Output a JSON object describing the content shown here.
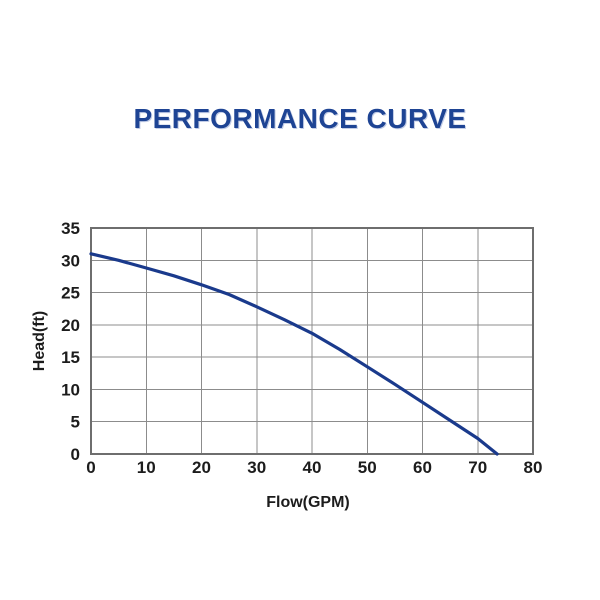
{
  "page": {
    "title": "PERFORMANCE CURVE"
  },
  "colors": {
    "background": "#ffffff",
    "title_text": "#1e4494",
    "curve": "#1a3a8c",
    "grid": "#8c8c8c",
    "border": "#6e6e6e",
    "tick_text": "#1c1c1c"
  },
  "chart_data": {
    "type": "line",
    "title": "PERFORMANCE CURVE",
    "xlabel": "Flow(GPM)",
    "ylabel": "Head(ft)",
    "xlim": [
      0,
      80
    ],
    "ylim": [
      0,
      35
    ],
    "x_ticks": [
      0,
      10,
      20,
      30,
      40,
      50,
      60,
      70,
      80
    ],
    "y_ticks": [
      0,
      5,
      10,
      15,
      20,
      25,
      30,
      35
    ],
    "grid": true,
    "legend": false,
    "series": [
      {
        "name": "head-vs-flow",
        "color": "#1a3a8c",
        "x": [
          0,
          5,
          10,
          15,
          20,
          25,
          30,
          35,
          40,
          45,
          50,
          55,
          60,
          65,
          70,
          73.5
        ],
        "y": [
          31.0,
          30.0,
          28.8,
          27.6,
          26.2,
          24.7,
          22.8,
          20.8,
          18.7,
          16.2,
          13.5,
          10.8,
          8.0,
          5.2,
          2.4,
          0.0
        ]
      }
    ]
  }
}
